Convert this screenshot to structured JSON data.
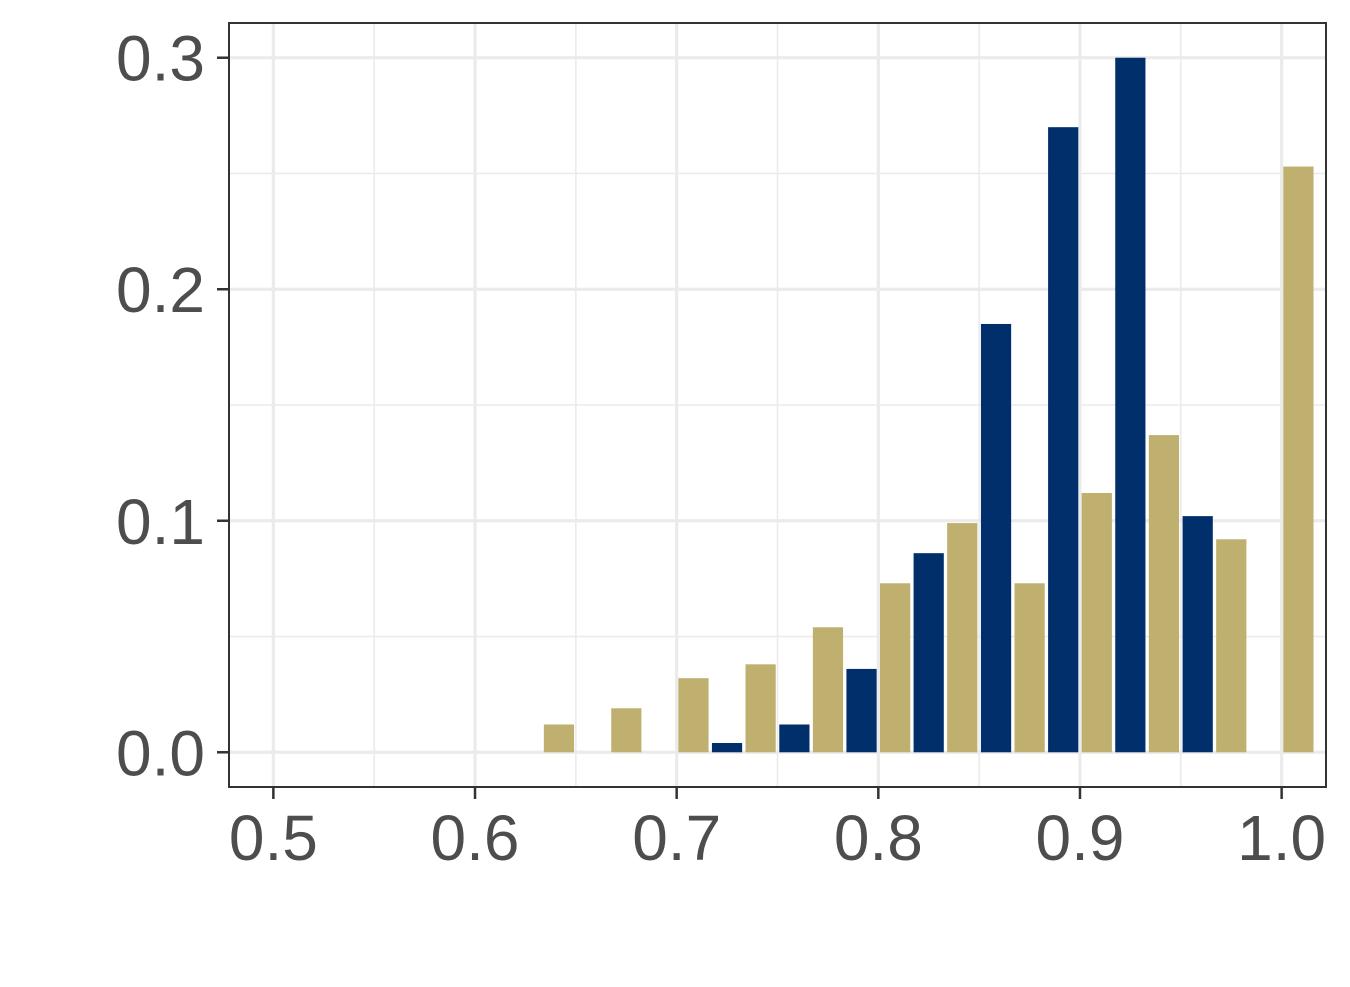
{
  "chart_data": {
    "type": "bar",
    "title": "",
    "xlabel": "",
    "ylabel": "",
    "xlim": [
      0.478,
      1.022
    ],
    "ylim": [
      -0.015,
      0.315
    ],
    "x_ticks": [
      0.5,
      0.6,
      0.7,
      0.8,
      0.9,
      1.0
    ],
    "x_tick_labels": [
      "0.5",
      "0.6",
      "0.7",
      "0.8",
      "0.9",
      "1.0"
    ],
    "y_ticks": [
      0.0,
      0.1,
      0.2,
      0.3
    ],
    "y_tick_labels": [
      "0.0",
      "0.1",
      "0.2",
      "0.3"
    ],
    "grid": true,
    "legend": "none",
    "bin_width": 0.0333,
    "series": [
      {
        "color": "#002f6c",
        "x": [
          0.7333,
          0.7667,
          0.8,
          0.8333,
          0.8667,
          0.9,
          0.9333,
          0.9667
        ],
        "values": [
          0.004,
          0.012,
          0.036,
          0.086,
          0.185,
          0.27,
          0.3,
          0.102
        ]
      },
      {
        "color": "#bfb070",
        "x": [
          0.6333,
          0.6667,
          0.7,
          0.7333,
          0.7667,
          0.8,
          0.8333,
          0.8667,
          0.9,
          0.9333,
          0.9667,
          1.0
        ],
        "values": [
          0.012,
          0.019,
          0.032,
          0.038,
          0.054,
          0.073,
          0.099,
          0.073,
          0.112,
          0.137,
          0.092,
          0.253
        ]
      }
    ]
  }
}
